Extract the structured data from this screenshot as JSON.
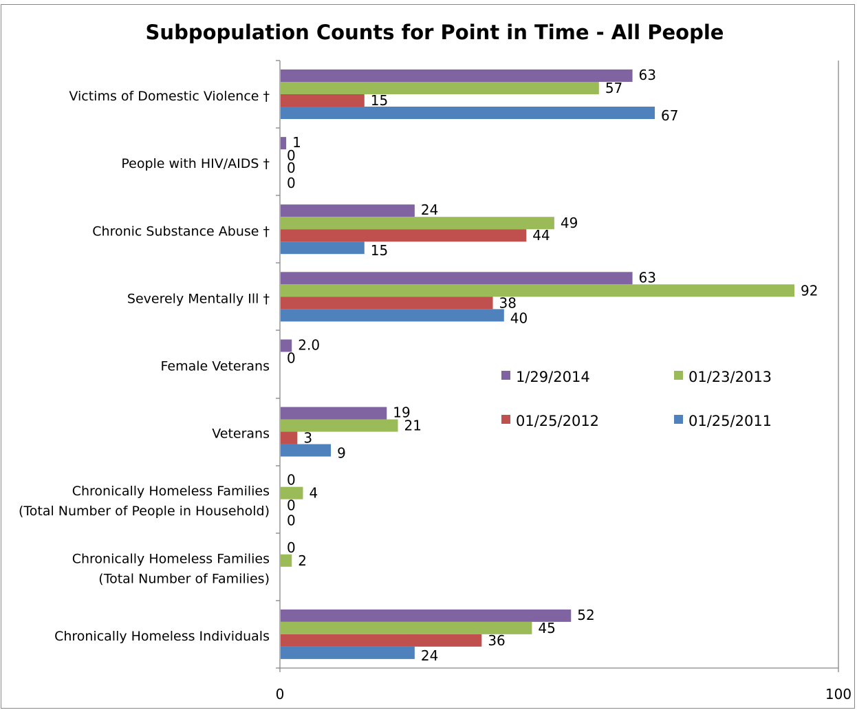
{
  "chart_data": {
    "type": "bar",
    "orientation": "horizontal",
    "title": "Subpopulation Counts for Point in Time - All People",
    "xlabel": "",
    "ylabel": "",
    "xlim": [
      0,
      100
    ],
    "x_ticks": [
      "0",
      "100"
    ],
    "grid": false,
    "legend_position": "right",
    "categories": [
      [
        "Victims of Domestic Violence †"
      ],
      [
        "People with HIV/AIDS †"
      ],
      [
        "Chronic Substance Abuse †"
      ],
      [
        "Severely Mentally Ill †"
      ],
      [
        "Female Veterans"
      ],
      [
        "Veterans"
      ],
      [
        "Chronically Homeless Families",
        "(Total Number of People in Household)"
      ],
      [
        "Chronically Homeless Families",
        "(Total Number of Families)"
      ],
      [
        "Chronically Homeless Individuals"
      ]
    ],
    "series": [
      {
        "name": "1/29/2014",
        "color": "#8064a2",
        "values": [
          63,
          1,
          24,
          63,
          2.0,
          19,
          0,
          0,
          52
        ],
        "labels": [
          "63",
          "1",
          "24",
          "63",
          "2.0",
          "19",
          "0",
          "0",
          "52"
        ]
      },
      {
        "name": "01/23/2013",
        "color": "#9bbb59",
        "values": [
          57,
          0,
          49,
          92,
          0,
          21,
          4,
          2,
          45
        ],
        "labels": [
          "57",
          "0",
          "49",
          "92",
          "0",
          "21",
          "4",
          "2",
          "45"
        ]
      },
      {
        "name": "01/25/2012",
        "color": "#c0504d",
        "values": [
          15,
          0,
          44,
          38,
          null,
          3,
          0,
          null,
          36
        ],
        "labels": [
          "15",
          "0",
          "44",
          "38",
          "",
          "3",
          "0",
          "",
          "36"
        ]
      },
      {
        "name": "01/25/2011",
        "color": "#4f81bd",
        "values": [
          67,
          0,
          15,
          40,
          null,
          9,
          0,
          null,
          24
        ],
        "labels": [
          "67",
          "0",
          "15",
          "40",
          "",
          "9",
          "0",
          "",
          "24"
        ]
      }
    ]
  }
}
